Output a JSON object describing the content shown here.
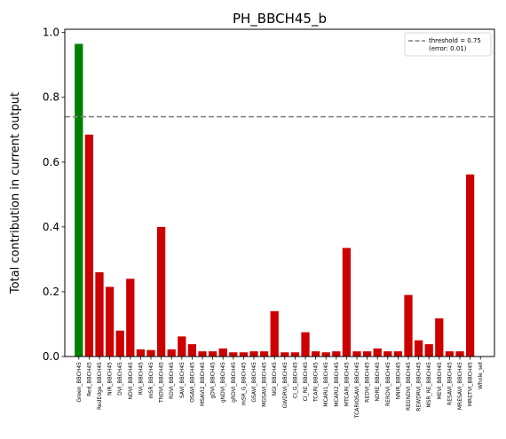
{
  "chart_data": {
    "type": "bar",
    "title": "PH_BBCH45_b",
    "xlabel": "",
    "ylabel": "Total contribution in current output",
    "ylim": [
      0,
      1.01
    ],
    "yticks": [
      "0.0",
      "0.2",
      "0.4",
      "0.6",
      "0.8",
      "1.0"
    ],
    "categories": [
      "Green_BBCH45",
      "Red_BBCH45",
      "RedEdge_BBCH45",
      "NIR_BBCH45",
      "DVI_BBCH45",
      "NDVI_BBCH45",
      "RVI_BBCH45",
      "mSR_BBCH45",
      "TNDVI_BBCH45",
      "RDVI_BBCH45",
      "SAVI_BBCH45",
      "OSAVI_BBCH45",
      "MSAVI2_BBCH45",
      "gDVI_BBCH45",
      "gNDVI_BBCH45",
      "gRDVI_BBCH45",
      "mSR_G_BBCH45",
      "GSAVI_BBCH45",
      "MGSAVI_BBCH45",
      "NGI_BBCH45",
      "GWDRVI_BBCH45",
      "CI_G_BBCH45",
      "CI_RE_BBCH45",
      "TCARI_BBCH45",
      "MCARI1_BBCH45",
      "MCARI2_BBCH45",
      "MTCARI_BBCH45",
      "TCARIOSAVI_BBCH45",
      "REDVI_BBCH45",
      "NDRE_BBCH45",
      "RERDVI_BBCH45",
      "NNIR_BBCH45",
      "REGNDVI_BBCH45",
      "REWDRVI_BBCH45",
      "MSR_RE_BBCH45",
      "MEVI_BBCH45",
      "RESAVI_BBCH45",
      "MRESAVI_BBCH45",
      "MRETVI_BBCH45",
      "Whole_set"
    ],
    "values": [
      0.965,
      0.685,
      0.26,
      0.215,
      0.08,
      0.24,
      0.022,
      0.02,
      0.4,
      0.022,
      0.062,
      0.038,
      0.016,
      0.016,
      0.025,
      0.013,
      0.013,
      0.016,
      0.016,
      0.14,
      0.013,
      0.013,
      0.075,
      0.016,
      0.013,
      0.016,
      0.335,
      0.016,
      0.016,
      0.025,
      0.016,
      0.016,
      0.19,
      0.05,
      0.038,
      0.118,
      0.016,
      0.016,
      0.562,
      0
    ],
    "bar_colors": [
      "#008000",
      "#cc0000",
      "#cc0000",
      "#cc0000",
      "#cc0000",
      "#cc0000",
      "#cc0000",
      "#cc0000",
      "#cc0000",
      "#cc0000",
      "#cc0000",
      "#cc0000",
      "#cc0000",
      "#cc0000",
      "#cc0000",
      "#cc0000",
      "#cc0000",
      "#cc0000",
      "#cc0000",
      "#cc0000",
      "#cc0000",
      "#cc0000",
      "#cc0000",
      "#cc0000",
      "#cc0000",
      "#cc0000",
      "#cc0000",
      "#cc0000",
      "#cc0000",
      "#cc0000",
      "#cc0000",
      "#cc0000",
      "#cc0000",
      "#cc0000",
      "#cc0000",
      "#cc0000",
      "#cc0000",
      "#cc0000",
      "#cc0000",
      "#cc0000"
    ],
    "threshold": {
      "value": 0.74,
      "legend_line1": "threshold = 0.75",
      "legend_line2": "(error: 0.01)",
      "color": "#808080"
    },
    "legend_position": "top-right",
    "grid": false
  }
}
